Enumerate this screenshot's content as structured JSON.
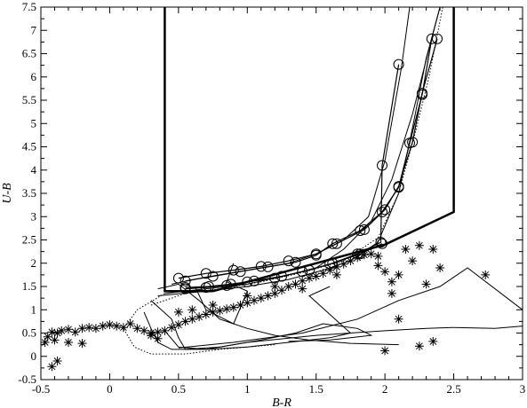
{
  "chart_data": {
    "type": "scatter",
    "title": "",
    "xlabel": "B-R",
    "ylabel": "U-B",
    "xlim": [
      -0.5,
      3
    ],
    "ylim": [
      -0.5,
      7.5
    ],
    "x_ticks": [
      -0.5,
      0,
      0.5,
      1,
      1.5,
      2,
      2.5,
      3
    ],
    "y_ticks": [
      -0.5,
      0,
      0.5,
      1,
      1.5,
      2,
      2.5,
      3,
      3.5,
      4,
      4.5,
      5,
      5.5,
      6,
      6.5,
      7,
      7.5
    ],
    "grid": false,
    "legend": "none",
    "series": [
      {
        "style": "thick-line",
        "points": [
          [
            0.4,
            7.5
          ],
          [
            0.4,
            1.4
          ],
          [
            0.75,
            1.4
          ],
          [
            1.0,
            1.6
          ],
          [
            1.5,
            2.0
          ],
          [
            2.0,
            2.4
          ],
          [
            2.5,
            3.1
          ],
          [
            2.5,
            7.5
          ]
        ]
      },
      {
        "style": "open-circles-line",
        "points": [
          [
            0.5,
            1.68
          ],
          [
            0.7,
            1.78
          ],
          [
            0.9,
            1.85
          ],
          [
            1.1,
            1.93
          ],
          [
            1.3,
            2.05
          ],
          [
            1.5,
            2.2
          ],
          [
            1.65,
            2.42
          ],
          [
            1.85,
            2.72
          ],
          [
            2.0,
            3.15
          ],
          [
            2.1,
            3.65
          ],
          [
            2.2,
            4.6
          ],
          [
            2.27,
            5.65
          ],
          [
            2.38,
            6.82
          ]
        ]
      },
      {
        "style": "open-circles-line",
        "points": [
          [
            0.55,
            1.62
          ],
          [
            0.75,
            1.72
          ],
          [
            0.95,
            1.82
          ],
          [
            1.15,
            1.92
          ],
          [
            1.35,
            2.02
          ],
          [
            1.5,
            2.17
          ],
          [
            1.62,
            2.42
          ],
          [
            1.82,
            2.7
          ],
          [
            1.98,
            3.1
          ],
          [
            2.1,
            3.63
          ],
          [
            2.18,
            4.58
          ],
          [
            2.27,
            5.62
          ],
          [
            2.34,
            6.82
          ]
        ]
      },
      {
        "style": "open-circles-line",
        "points": [
          [
            0.55,
            1.45
          ],
          [
            0.7,
            1.48
          ],
          [
            0.85,
            1.52
          ],
          [
            1.0,
            1.6
          ],
          [
            1.2,
            1.68
          ],
          [
            1.4,
            1.82
          ],
          [
            1.6,
            1.98
          ],
          [
            1.8,
            2.2
          ],
          [
            1.97,
            2.45
          ],
          [
            1.98,
            4.1
          ],
          [
            2.1,
            6.27
          ]
        ]
      },
      {
        "style": "open-circles-line",
        "points": [
          [
            0.55,
            1.48
          ],
          [
            0.72,
            1.5
          ],
          [
            0.88,
            1.55
          ],
          [
            1.05,
            1.62
          ],
          [
            1.25,
            1.72
          ],
          [
            1.45,
            1.85
          ],
          [
            1.62,
            2.0
          ],
          [
            1.82,
            2.2
          ],
          [
            1.98,
            2.42
          ]
        ]
      },
      {
        "style": "thin-line",
        "points": [
          [
            0.4,
            1.35
          ],
          [
            0.7,
            1.45
          ],
          [
            1.0,
            1.55
          ],
          [
            1.3,
            1.75
          ],
          [
            1.5,
            1.9
          ],
          [
            1.7,
            2.3
          ],
          [
            1.9,
            2.9
          ],
          [
            2.05,
            3.8
          ],
          [
            2.2,
            5.2
          ],
          [
            2.32,
            6.6
          ],
          [
            2.4,
            7.5
          ]
        ]
      },
      {
        "style": "thin-line",
        "points": [
          [
            0.35,
            1.3
          ],
          [
            0.7,
            1.4
          ],
          [
            1.0,
            1.5
          ],
          [
            1.3,
            1.65
          ],
          [
            1.55,
            1.85
          ],
          [
            1.75,
            2.05
          ],
          [
            1.95,
            2.45
          ],
          [
            2.1,
            3.5
          ],
          [
            2.2,
            4.9
          ],
          [
            2.3,
            6.4
          ],
          [
            2.4,
            7.5
          ]
        ]
      },
      {
        "style": "thin-line",
        "points": [
          [
            0.45,
            1.55
          ],
          [
            0.7,
            1.7
          ],
          [
            1.0,
            1.85
          ],
          [
            1.3,
            2.0
          ],
          [
            1.5,
            2.2
          ],
          [
            1.7,
            2.5
          ],
          [
            1.88,
            3.0
          ],
          [
            2.0,
            4.2
          ],
          [
            2.12,
            6.2
          ],
          [
            2.18,
            7.5
          ]
        ]
      },
      {
        "style": "dotted-line",
        "points": [
          [
            0.3,
            1.1
          ],
          [
            0.55,
            1.35
          ],
          [
            0.8,
            1.45
          ],
          [
            1.1,
            1.6
          ],
          [
            1.4,
            1.8
          ],
          [
            1.7,
            2.05
          ],
          [
            1.95,
            2.55
          ],
          [
            2.1,
            3.5
          ],
          [
            2.22,
            4.8
          ],
          [
            2.32,
            6.0
          ],
          [
            2.42,
            7.5
          ]
        ]
      },
      {
        "style": "dotted-line",
        "points": [
          [
            0.4,
            1.35
          ],
          [
            0.2,
            1.0
          ],
          [
            0.1,
            0.6
          ],
          [
            0.18,
            0.2
          ],
          [
            0.3,
            0.05
          ],
          [
            0.55,
            0.05
          ],
          [
            0.8,
            0.15
          ],
          [
            1.2,
            0.25
          ]
        ]
      },
      {
        "style": "thin-line",
        "points": [
          [
            0.35,
            1.45
          ],
          [
            0.5,
            1.55
          ],
          [
            0.65,
            1.2
          ],
          [
            0.8,
            0.8
          ],
          [
            1.0,
            0.6
          ],
          [
            1.2,
            0.45
          ],
          [
            1.45,
            0.35
          ],
          [
            1.75,
            0.28
          ],
          [
            2.1,
            0.25
          ]
        ]
      },
      {
        "style": "thin-line",
        "points": [
          [
            0.25,
            0.95
          ],
          [
            0.3,
            0.6
          ],
          [
            0.35,
            0.3
          ],
          [
            0.45,
            0.15
          ],
          [
            0.7,
            0.15
          ],
          [
            1.0,
            0.2
          ],
          [
            1.3,
            0.3
          ],
          [
            1.6,
            0.4
          ],
          [
            1.75,
            0.5
          ],
          [
            1.6,
            0.9
          ],
          [
            1.45,
            1.3
          ],
          [
            1.6,
            1.5
          ]
        ]
      },
      {
        "style": "thin-line",
        "points": [
          [
            0.3,
            1.2
          ],
          [
            0.45,
            0.8
          ],
          [
            0.5,
            0.4
          ],
          [
            0.55,
            0.15
          ],
          [
            0.8,
            0.2
          ],
          [
            1.1,
            0.35
          ],
          [
            1.35,
            0.5
          ],
          [
            1.55,
            0.7
          ],
          [
            1.8,
            0.6
          ],
          [
            1.9,
            0.45
          ],
          [
            1.6,
            0.35
          ],
          [
            1.3,
            0.32
          ]
        ]
      },
      {
        "style": "thin-line",
        "points": [
          [
            0.4,
            0.55
          ],
          [
            0.5,
            0.2
          ],
          [
            0.7,
            0.15
          ],
          [
            1.0,
            0.3
          ],
          [
            1.5,
            0.45
          ],
          [
            2.0,
            0.55
          ],
          [
            2.3,
            0.6
          ],
          [
            2.5,
            0.62
          ],
          [
            2.8,
            0.6
          ],
          [
            3.0,
            0.65
          ]
        ]
      },
      {
        "style": "thin-line",
        "points": [
          [
            0.5,
            0.18
          ],
          [
            0.9,
            0.3
          ],
          [
            1.4,
            0.5
          ],
          [
            1.8,
            0.8
          ],
          [
            2.1,
            1.2
          ],
          [
            2.4,
            1.5
          ],
          [
            2.6,
            1.9
          ],
          [
            3.0,
            1.0
          ]
        ]
      },
      {
        "style": "thin-line",
        "points": [
          [
            0.62,
            1.5
          ],
          [
            0.7,
            1.0
          ],
          [
            0.9,
            0.7
          ],
          [
            1.0,
            1.4
          ],
          [
            0.85,
            1.6
          ],
          [
            0.9,
            2.0
          ]
        ]
      },
      {
        "style": "asterisk",
        "points": [
          [
            -0.47,
            0.3
          ],
          [
            -0.45,
            0.42
          ],
          [
            -0.42,
            0.52
          ],
          [
            -0.38,
            0.5
          ],
          [
            -0.35,
            0.55
          ],
          [
            -0.3,
            0.58
          ],
          [
            -0.25,
            0.52
          ],
          [
            -0.2,
            0.6
          ],
          [
            -0.15,
            0.62
          ],
          [
            -0.1,
            0.6
          ],
          [
            -0.05,
            0.65
          ],
          [
            0.0,
            0.68
          ],
          [
            0.05,
            0.65
          ],
          [
            0.1,
            0.62
          ],
          [
            0.15,
            0.7
          ],
          [
            0.2,
            0.6
          ],
          [
            0.25,
            0.55
          ],
          [
            0.3,
            0.5
          ],
          [
            0.35,
            0.52
          ],
          [
            0.4,
            0.55
          ],
          [
            0.45,
            0.62
          ],
          [
            0.5,
            0.68
          ],
          [
            0.55,
            0.75
          ],
          [
            0.6,
            0.8
          ],
          [
            0.65,
            0.85
          ],
          [
            0.7,
            0.9
          ],
          [
            0.75,
            0.95
          ],
          [
            0.8,
            0.98
          ],
          [
            0.85,
            1.02
          ],
          [
            0.9,
            1.05
          ],
          [
            0.95,
            1.1
          ],
          [
            1.0,
            1.15
          ],
          [
            1.05,
            1.2
          ],
          [
            1.1,
            1.25
          ],
          [
            1.15,
            1.3
          ],
          [
            1.2,
            1.35
          ],
          [
            1.25,
            1.42
          ],
          [
            1.3,
            1.5
          ],
          [
            1.35,
            1.55
          ],
          [
            1.4,
            1.62
          ],
          [
            1.45,
            1.68
          ],
          [
            1.5,
            1.72
          ],
          [
            1.55,
            1.78
          ],
          [
            1.6,
            1.85
          ],
          [
            1.65,
            1.92
          ],
          [
            1.7,
            1.98
          ],
          [
            1.75,
            2.05
          ],
          [
            1.8,
            2.12
          ],
          [
            1.85,
            2.18
          ],
          [
            1.9,
            2.2
          ],
          [
            1.95,
            2.15
          ],
          [
            2.0,
            1.82
          ],
          [
            2.05,
            1.6
          ],
          [
            2.1,
            1.75
          ],
          [
            2.15,
            2.3
          ],
          [
            2.2,
            2.05
          ],
          [
            2.25,
            2.38
          ],
          [
            2.3,
            1.55
          ],
          [
            2.35,
            2.3
          ],
          [
            2.4,
            1.9
          ],
          [
            2.1,
            0.8
          ],
          [
            2.25,
            0.22
          ],
          [
            2.35,
            0.32
          ],
          [
            2.73,
            1.75
          ],
          [
            -0.42,
            -0.22
          ],
          [
            -0.38,
            -0.1
          ],
          [
            -0.4,
            0.35
          ],
          [
            -0.3,
            0.3
          ],
          [
            -0.2,
            0.28
          ],
          [
            0.5,
            0.95
          ],
          [
            0.3,
            0.45
          ],
          [
            0.35,
            0.38
          ],
          [
            0.6,
            1.0
          ],
          [
            0.75,
            1.1
          ],
          [
            1.0,
            1.3
          ],
          [
            1.2,
            1.5
          ],
          [
            1.4,
            1.45
          ],
          [
            1.65,
            1.75
          ],
          [
            1.95,
            1.95
          ],
          [
            2.05,
            1.35
          ],
          [
            2.0,
            0.12
          ]
        ]
      }
    ]
  }
}
